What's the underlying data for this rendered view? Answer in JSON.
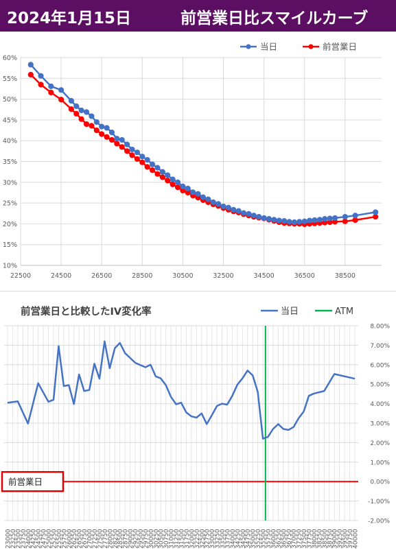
{
  "header": {
    "date": "2024年1月15日",
    "title": "前営業日比スマイルカーブ"
  },
  "chart_data": [
    {
      "type": "line",
      "title": "",
      "legend": [
        "当日",
        "前営業日"
      ],
      "legend_position": "top-right",
      "x_ticks": [
        "22500",
        "24500",
        "26500",
        "28500",
        "30500",
        "32500",
        "34500",
        "36500",
        "38500"
      ],
      "y_ticks": [
        "10%",
        "15%",
        "20%",
        "25%",
        "30%",
        "35%",
        "40%",
        "45%",
        "50%",
        "55%",
        "60%"
      ],
      "xlim": [
        22500,
        40300
      ],
      "ylim": [
        10,
        60
      ],
      "grid": true,
      "series": [
        {
          "name": "当日",
          "color": "#4472c4",
          "x": [
            23000,
            23500,
            24000,
            24500,
            25000,
            25250,
            25500,
            25750,
            26000,
            26250,
            26500,
            26750,
            27000,
            27250,
            27500,
            27750,
            28000,
            28250,
            28500,
            28750,
            29000,
            29250,
            29500,
            29750,
            30000,
            30250,
            30500,
            30750,
            31000,
            31250,
            31500,
            31750,
            32000,
            32250,
            32500,
            32750,
            33000,
            33250,
            33500,
            33750,
            34000,
            34250,
            34500,
            34750,
            35000,
            35250,
            35500,
            35750,
            36000,
            36250,
            36500,
            36750,
            37000,
            37250,
            37500,
            37750,
            38000,
            38500,
            39000,
            40000
          ],
          "y": [
            58.3,
            55.6,
            53.1,
            52.2,
            49.6,
            48.3,
            47.3,
            46.9,
            45.9,
            44.5,
            43.4,
            43.1,
            42.0,
            40.5,
            40.2,
            39.1,
            37.9,
            37.2,
            36.2,
            35.4,
            34.3,
            33.5,
            32.5,
            31.7,
            30.7,
            30.0,
            29.0,
            28.5,
            27.6,
            27.2,
            26.4,
            25.9,
            25.2,
            24.8,
            24.2,
            23.9,
            23.4,
            23.1,
            22.6,
            22.4,
            22.0,
            21.7,
            21.4,
            21.2,
            21.0,
            20.8,
            20.7,
            20.5,
            20.4,
            20.5,
            20.6,
            20.8,
            20.9,
            21.0,
            21.2,
            21.3,
            21.4,
            21.7,
            22.0,
            22.8
          ]
        },
        {
          "name": "前営業日",
          "color": "#ff0000",
          "x": [
            23000,
            23500,
            24000,
            24500,
            25000,
            25250,
            25500,
            25750,
            26000,
            26250,
            26500,
            26750,
            27000,
            27250,
            27500,
            27750,
            28000,
            28250,
            28500,
            28750,
            29000,
            29250,
            29500,
            29750,
            30000,
            30250,
            30500,
            30750,
            31000,
            31250,
            31500,
            31750,
            32000,
            32250,
            32500,
            32750,
            33000,
            33250,
            33500,
            33750,
            34000,
            34250,
            34500,
            34750,
            35000,
            35250,
            35500,
            35750,
            36000,
            36250,
            36500,
            36750,
            37000,
            37250,
            37500,
            37750,
            38000,
            38500,
            39000,
            40000
          ],
          "y": [
            55.9,
            53.5,
            51.6,
            49.9,
            47.6,
            46.5,
            45.2,
            44.0,
            43.6,
            42.5,
            41.6,
            40.9,
            40.2,
            39.3,
            38.5,
            37.5,
            36.5,
            35.6,
            34.8,
            33.7,
            32.9,
            32.0,
            31.2,
            30.4,
            29.5,
            28.8,
            28.0,
            27.5,
            26.8,
            26.3,
            25.7,
            25.2,
            24.7,
            24.3,
            23.8,
            23.4,
            23.0,
            22.7,
            22.3,
            22.0,
            21.7,
            21.5,
            21.3,
            21.0,
            20.7,
            20.4,
            20.2,
            20.1,
            20.0,
            20.0,
            19.9,
            20.0,
            20.1,
            20.2,
            20.3,
            20.4,
            20.5,
            20.6,
            20.9,
            21.7
          ]
        }
      ]
    },
    {
      "type": "line",
      "title": "前営業日と比較したIV変化率",
      "legend": [
        "当日",
        "ATM"
      ],
      "legend_position": "top-right",
      "x_ticks": [
        "23000",
        "23250",
        "23500",
        "23750",
        "24000",
        "24250",
        "24500",
        "24750",
        "25000",
        "25250",
        "25500",
        "25750",
        "26000",
        "26250",
        "26500",
        "26750",
        "27000",
        "27250",
        "27500",
        "27750",
        "28000",
        "28250",
        "28500",
        "28750",
        "29000",
        "29250",
        "29500",
        "29750",
        "30000",
        "30250",
        "30500",
        "30750",
        "31000",
        "31250",
        "31500",
        "31750",
        "32000",
        "32250",
        "32500",
        "32750",
        "33000",
        "33250",
        "33500",
        "33750",
        "34000",
        "34250",
        "34500",
        "34750",
        "35000",
        "35250",
        "35500",
        "35750",
        "36000",
        "36250",
        "36500",
        "36750",
        "37000",
        "37250",
        "37500",
        "37750",
        "38000",
        "38250",
        "38500",
        "38750",
        "39000",
        "39250",
        "39500",
        "39750",
        "40000"
      ],
      "y_ticks": [
        "-2.00%",
        "-1.00%",
        "0.00%",
        "1.00%",
        "2.00%",
        "3.00%",
        "4.00%",
        "5.00%",
        "6.00%",
        "7.00%",
        "8.00%"
      ],
      "ylim": [
        -2,
        8
      ],
      "grid": true,
      "atm_strike": 35625,
      "baseline_label": "前営業日",
      "series": [
        {
          "name": "当日",
          "color": "#4472c4",
          "x": [
            23000,
            23500,
            24000,
            24500,
            25000,
            25250,
            25500,
            25750,
            26000,
            26250,
            26500,
            26750,
            27000,
            27250,
            27500,
            27750,
            28000,
            28250,
            28500,
            28750,
            29000,
            29250,
            29500,
            29750,
            30000,
            30250,
            30500,
            30750,
            31000,
            31250,
            31500,
            31750,
            32000,
            32250,
            32500,
            32750,
            33000,
            33250,
            33500,
            33750,
            34000,
            34250,
            34500,
            34750,
            35000,
            35250,
            35500,
            35750,
            36000,
            36250,
            36500,
            36750,
            37000,
            37250,
            37500,
            37750,
            38000,
            38500,
            39000,
            40000
          ],
          "y": [
            4.05,
            4.12,
            2.98,
            5.05,
            4.1,
            4.2,
            6.95,
            4.9,
            4.95,
            3.98,
            5.5,
            4.65,
            4.7,
            6.05,
            5.28,
            7.2,
            5.82,
            6.85,
            7.12,
            6.6,
            6.35,
            6.1,
            5.98,
            5.87,
            6.0,
            5.4,
            5.3,
            4.95,
            4.35,
            3.97,
            4.05,
            3.55,
            3.35,
            3.28,
            3.5,
            2.95,
            3.4,
            3.88,
            4.0,
            3.95,
            4.4,
            4.98,
            5.3,
            5.7,
            5.45,
            4.6,
            2.2,
            2.3,
            2.7,
            2.95,
            2.7,
            2.65,
            2.8,
            3.25,
            3.6,
            4.4,
            4.52,
            4.65,
            5.52,
            5.28
          ]
        },
        {
          "name": "ATM",
          "color": "#00b050"
        }
      ]
    }
  ]
}
